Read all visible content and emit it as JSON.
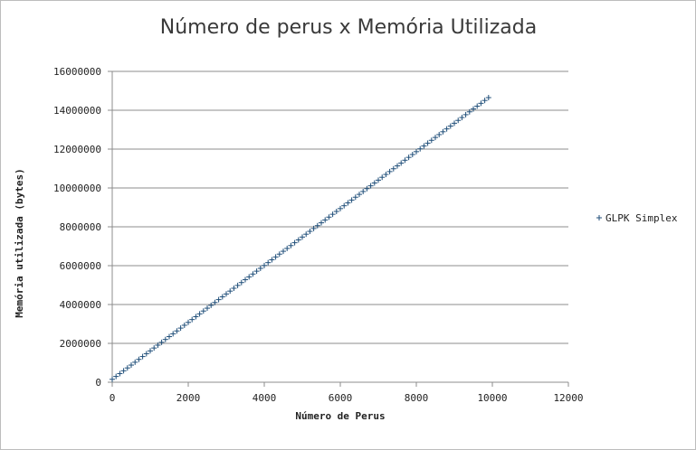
{
  "chart_data": {
    "type": "scatter",
    "title": "Número de perus x Memória Utilizada",
    "xlabel": "Número de Perus",
    "ylabel": "Memória utilizada (bytes)",
    "xlim": [
      0,
      12000
    ],
    "ylim": [
      0,
      16000000
    ],
    "x_ticks": [
      "0",
      "2000",
      "4000",
      "6000",
      "8000",
      "10000",
      "12000"
    ],
    "y_ticks": [
      "0",
      "2000000",
      "4000000",
      "6000000",
      "8000000",
      "10000000",
      "12000000",
      "14000000",
      "16000000"
    ],
    "grid": "horizontal",
    "legend_position": "right",
    "marker": "plus",
    "color": "#1f4e79",
    "series": [
      {
        "name": "GLPK Simplex",
        "x_start": 0,
        "x_step": 100,
        "x_end": 9900,
        "y_at_x_start": 150000,
        "y_at_x_end": 14650000
      }
    ]
  }
}
